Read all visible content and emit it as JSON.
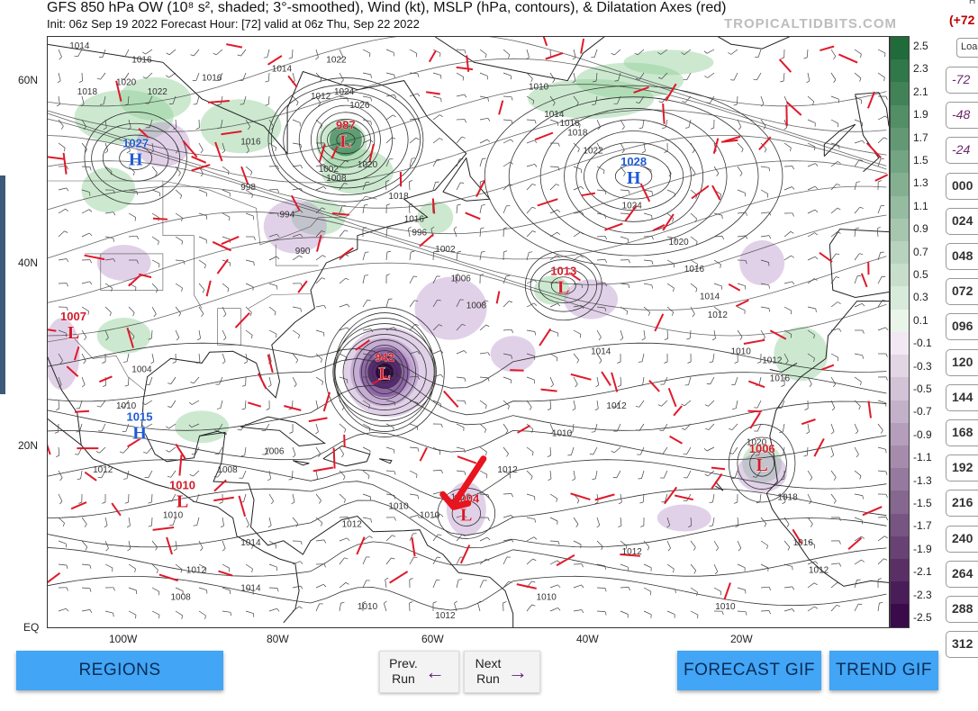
{
  "header": {
    "title": "GFS 850 hPa OW (10⁸ s², shaded; 3°-smoothed), Wind (kt), MSLP (hPa, contours), & Dilatation Axes (red)",
    "subtitle": "Init: 06z Sep 19 2022   Forecast Hour: [72]   valid at 06z Thu, Sep 22 2022",
    "watermark": "TROPICALTIDBITS.COM"
  },
  "map": {
    "lat_labels": [
      "60N",
      "40N",
      "20N",
      "EQ"
    ],
    "lon_labels": [
      "100W",
      "80W",
      "60W",
      "40W",
      "20W"
    ],
    "pressure_centers": [
      {
        "type": "L",
        "value": "987",
        "lon": -71.5,
        "lat": 53.5
      },
      {
        "type": "H",
        "value": "1027",
        "lon": -98.5,
        "lat": 51.5
      },
      {
        "type": "H",
        "value": "1028",
        "lon": -34.5,
        "lat": 49.5
      },
      {
        "type": "L",
        "value": "1013",
        "lon": -43.5,
        "lat": 37.5
      },
      {
        "type": "L",
        "value": "1007",
        "lon": -106.5,
        "lat": 32.5
      },
      {
        "type": "L",
        "value": "942",
        "lon": -66.5,
        "lat": 28.0
      },
      {
        "type": "H",
        "value": "1015",
        "lon": -98.0,
        "lat": 21.5
      },
      {
        "type": "L",
        "value": "1006",
        "lon": -18.0,
        "lat": 18.0
      },
      {
        "type": "L",
        "value": "1010",
        "lon": -92.5,
        "lat": 14.0
      },
      {
        "type": "L",
        "value": "1004",
        "lon": -56.0,
        "lat": 12.5
      }
    ],
    "contour_labels": [
      "1014",
      "1016",
      "1020",
      "1022",
      "1018",
      "1016",
      "1016",
      "998",
      "994",
      "990",
      "1002",
      "1008",
      "1012",
      "1014",
      "1022",
      "1024",
      "1026",
      "1020",
      "1018",
      "1016",
      "996",
      "1002",
      "1006",
      "1008",
      "1010",
      "1014",
      "1016",
      "1018",
      "1022",
      "1024",
      "1020",
      "1016",
      "1014",
      "1012",
      "1010",
      "1012",
      "1016",
      "1020",
      "1018",
      "1016",
      "1014",
      "1012",
      "1010",
      "1012",
      "1010",
      "1010",
      "1010",
      "1012",
      "1014",
      "1012",
      "1010",
      "1008",
      "1006",
      "1004",
      "1010",
      "1012",
      "1014",
      "1008",
      "1012",
      "1010",
      "1012",
      "1010",
      "1012",
      "1010"
    ],
    "annotation": "red-arrow-pointing-at-1004-low"
  },
  "colorbar": {
    "labels": [
      "2.5",
      "2.3",
      "2.1",
      "1.9",
      "1.7",
      "1.5",
      "1.3",
      "1.1",
      "0.9",
      "0.7",
      "0.5",
      "0.3",
      "0.1",
      "-0.1",
      "-0.3",
      "-0.5",
      "-0.7",
      "-0.9",
      "-1.1",
      "-1.3",
      "-1.5",
      "-1.7",
      "-1.9",
      "-2.1",
      "-2.3",
      "-2.5"
    ],
    "positive_color_top": "#1f6b3a",
    "positive_color_bottom": "#e9f5e8",
    "negative_color_top": "#f1e8f3",
    "negative_color_bottom": "#3a0a4a"
  },
  "forecast_hours": {
    "current": "(+72",
    "top_hint": "H",
    "load_label": "Load",
    "buttons": [
      "-72",
      "-48",
      "-24",
      "000",
      "024",
      "048",
      "072",
      "096",
      "120",
      "144",
      "168",
      "192",
      "216",
      "240",
      "264",
      "288",
      "312"
    ]
  },
  "buttons": {
    "regions": "REGIONS",
    "prev_run_line1": "Prev.",
    "prev_run_line2": "Run",
    "next_run_line1": "Next",
    "next_run_line2": "Run",
    "forecast_gif": "FORECAST GIF",
    "trend_gif": "TREND GIF",
    "prev_arrow": "🡐",
    "next_arrow": "🡒"
  }
}
